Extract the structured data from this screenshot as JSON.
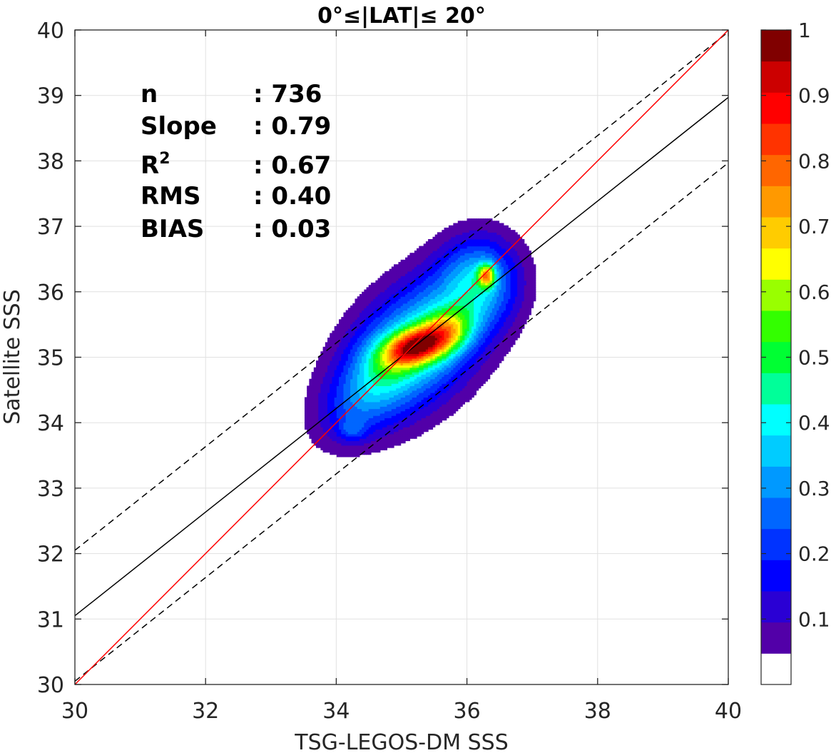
{
  "chart_data": {
    "type": "contour",
    "title": "0°≤|LAT|≤ 20°",
    "xlabel": "TSG-LEGOS-DM SSS",
    "ylabel": "Satellite SSS",
    "xlim": [
      30,
      40
    ],
    "ylim": [
      30,
      40
    ],
    "x_ticks": [
      "30",
      "32",
      "34",
      "36",
      "38",
      "40"
    ],
    "y_ticks": [
      "30",
      "31",
      "32",
      "33",
      "34",
      "35",
      "36",
      "37",
      "38",
      "39",
      "40"
    ],
    "grid": true,
    "stats": [
      {
        "label": "n",
        "value": ": 736"
      },
      {
        "label": "Slope",
        "value": ": 0.79"
      },
      {
        "label": "R",
        "sup": "2",
        "value": ": 0.67"
      },
      {
        "label": "RMS",
        "value": ": 0.40"
      },
      {
        "label": "BIAS",
        "value": ": 0.03"
      }
    ],
    "lines": {
      "identity": {
        "x": [
          30,
          40
        ],
        "y": [
          30,
          40
        ],
        "color": "#ff0000"
      },
      "regression": {
        "x": [
          30,
          40
        ],
        "y": [
          31.05,
          38.97
        ],
        "color": "#000000"
      },
      "upper_bound": {
        "x": [
          30,
          40
        ],
        "y": [
          32.05,
          39.97
        ],
        "color": "#000000",
        "dash": true
      },
      "lower_bound": {
        "x": [
          30,
          40
        ],
        "y": [
          30.05,
          37.97
        ],
        "color": "#000000",
        "dash": true
      }
    },
    "density_blobs": [
      {
        "cx": 35.25,
        "cy": 35.2,
        "sx": 0.9,
        "sy": 0.55,
        "rot": 45,
        "amp": 0.45
      },
      {
        "cx": 34.4,
        "cy": 34.4,
        "sx": 0.55,
        "sy": 0.35,
        "rot": 45,
        "amp": 0.16
      },
      {
        "cx": 36.2,
        "cy": 36.2,
        "sx": 0.4,
        "sy": 0.45,
        "rot": 0,
        "amp": 0.28
      },
      {
        "cx": 35.15,
        "cy": 35.15,
        "sx": 0.3,
        "sy": 0.18,
        "rot": 20,
        "amp": 0.5
      },
      {
        "cx": 35.65,
        "cy": 35.35,
        "sx": 0.32,
        "sy": 0.22,
        "rot": 30,
        "amp": 0.4
      },
      {
        "cx": 36.3,
        "cy": 36.25,
        "sx": 0.09,
        "sy": 0.12,
        "rot": 0,
        "amp": 0.45
      },
      {
        "cx": 34.25,
        "cy": 33.9,
        "sx": 0.15,
        "sy": 0.12,
        "rot": 0,
        "amp": 0.12
      },
      {
        "cx": 34.7,
        "cy": 35.0,
        "sx": 0.3,
        "sy": 0.3,
        "rot": 0,
        "amp": 0.08
      }
    ],
    "colorbar": {
      "levels": [
        0,
        0.05,
        0.1,
        0.15,
        0.2,
        0.25,
        0.3,
        0.35,
        0.4,
        0.45,
        0.5,
        0.55,
        0.6,
        0.65,
        0.7,
        0.75,
        0.8,
        0.85,
        0.9,
        0.95,
        1.0
      ],
      "colors": [
        "#ffffff",
        "#5200a8",
        "#2a00d4",
        "#0000ff",
        "#0033ff",
        "#0066ff",
        "#0099ff",
        "#00ccff",
        "#00ffff",
        "#00ff99",
        "#00ff33",
        "#33ff00",
        "#99ff00",
        "#ffff00",
        "#ffcc00",
        "#ff9900",
        "#ff6600",
        "#ff3300",
        "#ff0000",
        "#cc0000",
        "#800000"
      ],
      "ticks": [
        "0.1",
        "0.2",
        "0.3",
        "0.4",
        "0.5",
        "0.6",
        "0.7",
        "0.8",
        "0.9",
        "1"
      ]
    }
  }
}
